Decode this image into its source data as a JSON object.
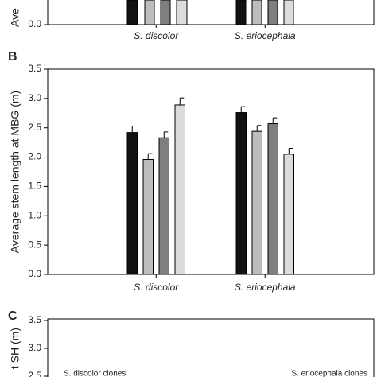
{
  "chart_data": [
    {
      "type": "fragment",
      "y_label": "Ave",
      "categories": [
        "S. discolor",
        "S. eriocephala"
      ],
      "yticks": [
        {
          "value": 0,
          "label": "0.0"
        }
      ]
    },
    {
      "type": "bar",
      "title": "B",
      "y_label": "Average stem length at MBG (m)",
      "categories": [
        "S. discolor",
        "S. eriocephala"
      ],
      "series": [
        {
          "color": "#111111",
          "values": [
            2.42,
            2.76
          ],
          "errors": [
            0.11,
            0.1
          ]
        },
        {
          "color": "#bdbdbd",
          "values": [
            1.96,
            2.44
          ],
          "errors": [
            0.1,
            0.1
          ]
        },
        {
          "color": "#7f7f7f",
          "values": [
            2.33,
            2.57
          ],
          "errors": [
            0.1,
            0.1
          ]
        },
        {
          "color": "#dcdcdc",
          "values": [
            2.89,
            2.05
          ],
          "errors": [
            0.12,
            0.1
          ]
        }
      ],
      "ylim": [
        0,
        3.5
      ],
      "yticks": [
        {
          "value": 0,
          "label": "0.0"
        },
        {
          "value": 0.5,
          "label": "0.5"
        },
        {
          "value": 1,
          "label": "1.0"
        },
        {
          "value": 1.5,
          "label": "1.5"
        },
        {
          "value": 2,
          "label": "2.0"
        },
        {
          "value": 2.5,
          "label": "2.5"
        },
        {
          "value": 3,
          "label": "3.0"
        },
        {
          "value": 3.5,
          "label": "3.5"
        }
      ]
    },
    {
      "type": "fragment",
      "title": "C",
      "y_label": "t SH (m)",
      "annotations": [
        "S. discolor clones",
        "S. eriocephala clones"
      ],
      "yticks": [
        {
          "value": 3.5,
          "label": "3.5"
        },
        {
          "value": 3,
          "label": "3.0"
        },
        {
          "value": 2.5,
          "label": "2.5"
        }
      ]
    }
  ]
}
